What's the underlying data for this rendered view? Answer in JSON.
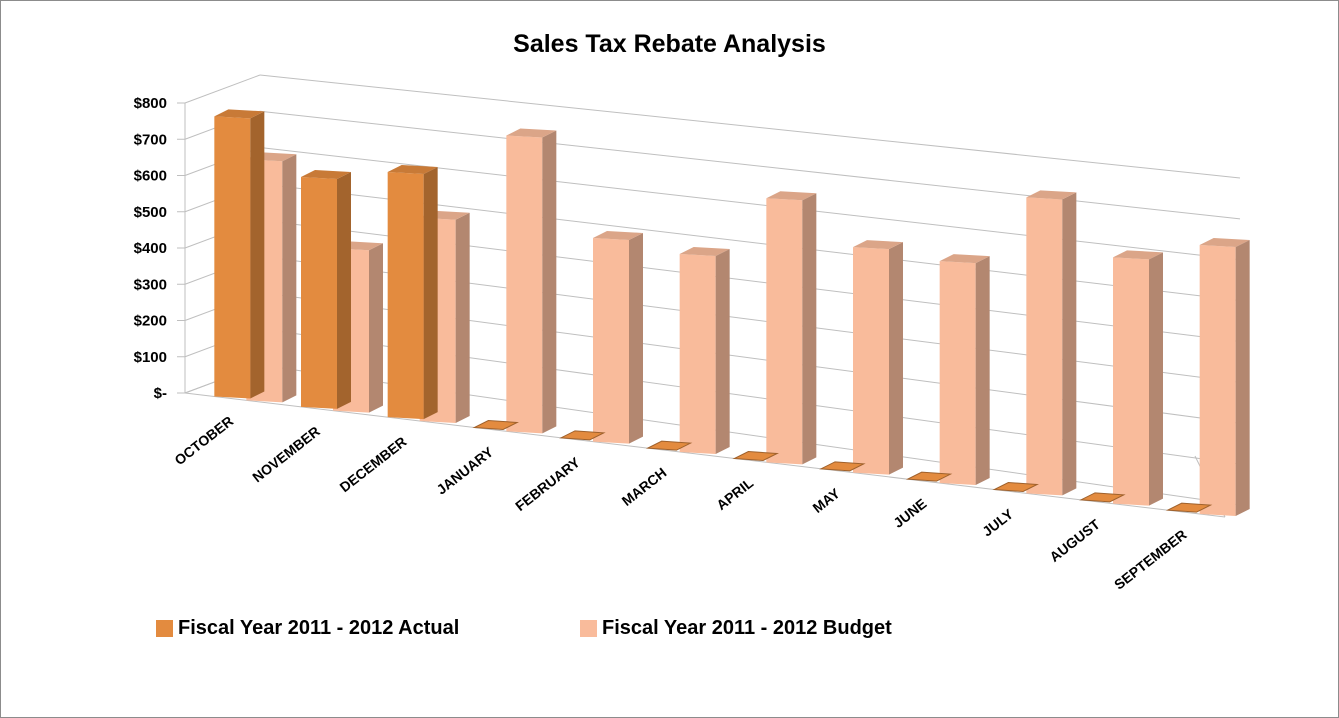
{
  "chart_data": {
    "type": "bar",
    "title": "Sales Tax Rebate Analysis",
    "categories": [
      "OCTOBER",
      "NOVEMBER",
      "DECEMBER",
      "JANUARY",
      "FEBRUARY",
      "MARCH",
      "APRIL",
      "MAY",
      "JUNE",
      "JULY",
      "AUGUST",
      "SEPTEMBER"
    ],
    "series": [
      {
        "name": "Fiscal Year 2011 - 2012 Actual",
        "values": [
          770,
          625,
          660,
          0,
          0,
          0,
          0,
          0,
          0,
          0,
          0,
          0
        ],
        "color": "#e38b3f"
      },
      {
        "name": "Fiscal Year 2011 - 2012 Budget",
        "values": [
          660,
          440,
          545,
          785,
          535,
          515,
          680,
          575,
          560,
          740,
          610,
          660
        ],
        "color": "#f9bb9b"
      }
    ],
    "y_ticks": [
      "$-",
      "$100",
      "$200",
      "$300",
      "$400",
      "$500",
      "$600",
      "$700",
      "$800"
    ],
    "ylim": [
      0,
      800
    ],
    "grid": true,
    "legend_position": "bottom-left",
    "chart_style": "3d-column"
  }
}
